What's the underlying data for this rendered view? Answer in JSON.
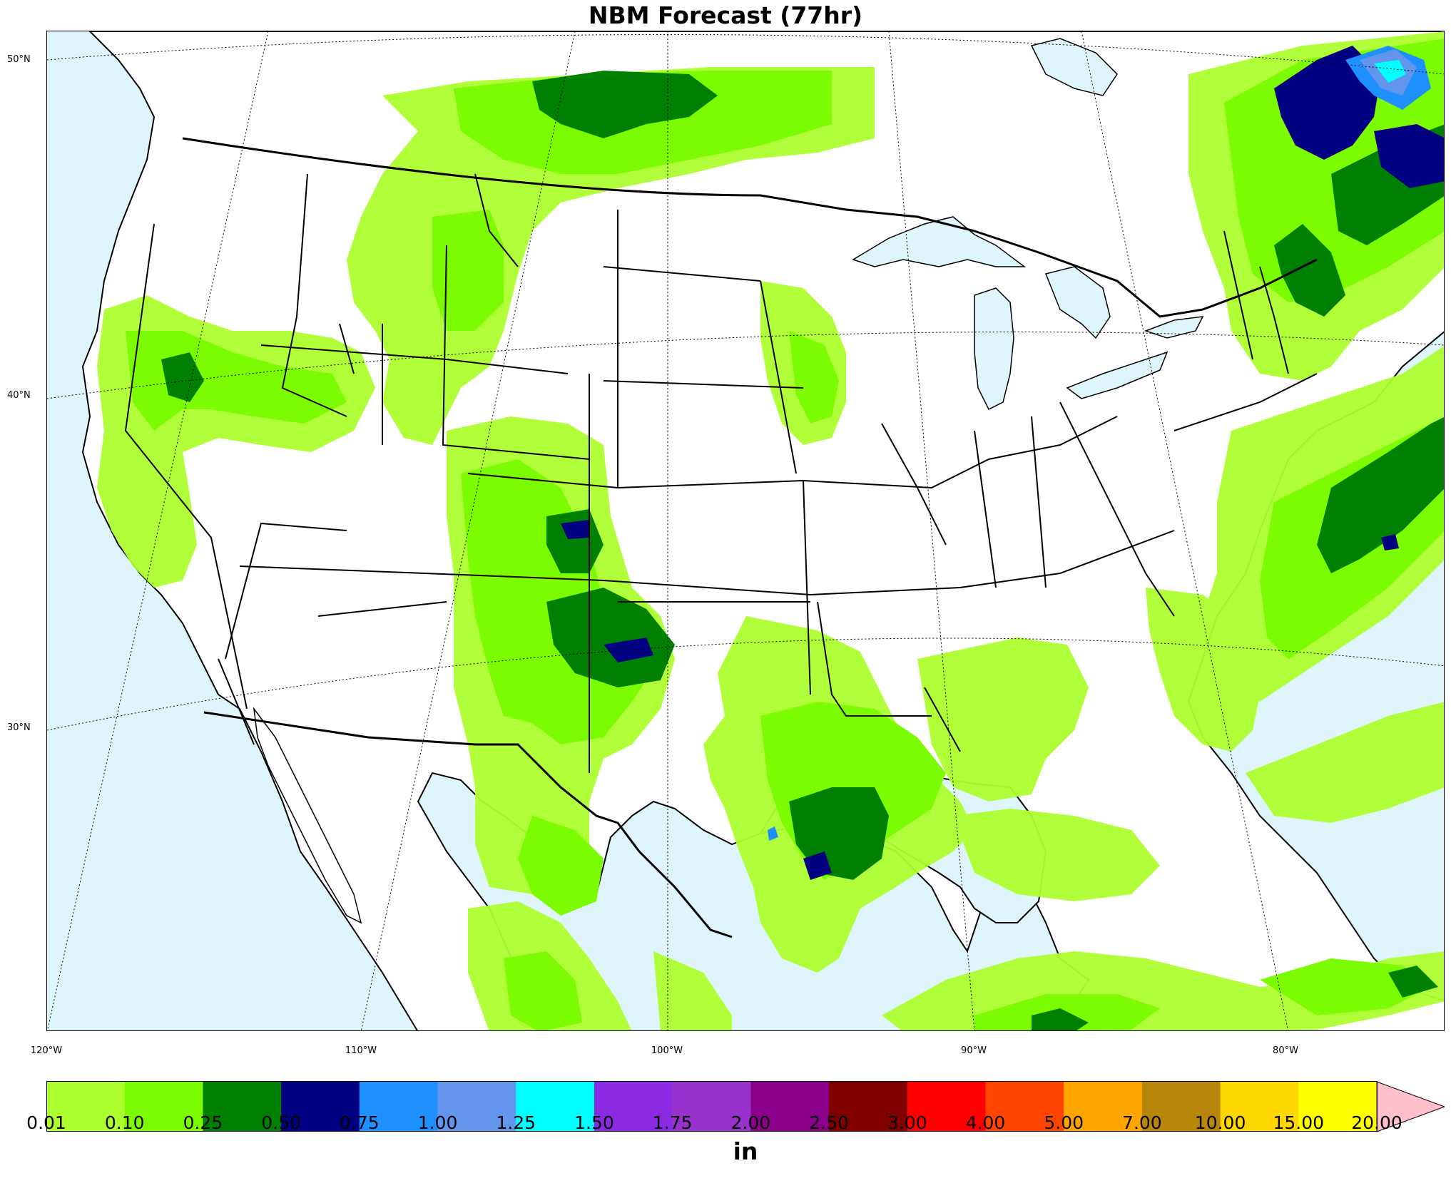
{
  "title": "NBM Forecast (77hr)",
  "map": {
    "type": "precipitation-contour-map",
    "region": "CONUS",
    "colors": {
      "ocean": "#dff5fc",
      "land": "#ffffff",
      "lines": "#000000"
    },
    "lat_labels": [
      "50°N",
      "40°N",
      "30°N"
    ],
    "lon_labels": [
      "120°W",
      "110°W",
      "100°W",
      "90°W",
      "80°W"
    ]
  },
  "colorbar": {
    "units": "in",
    "extend": "max",
    "extend_color": "#ffc0cb",
    "levels": [
      "0.01",
      "0.10",
      "0.25",
      "0.50",
      "0.75",
      "1.00",
      "1.25",
      "1.50",
      "1.75",
      "2.00",
      "2.50",
      "3.00",
      "4.00",
      "5.00",
      "7.00",
      "10.00",
      "15.00",
      "20.00"
    ],
    "colors": [
      "#adff2f",
      "#7cfc00",
      "#008000",
      "#000080",
      "#1e90ff",
      "#6495ed",
      "#00ffff",
      "#8a2be2",
      "#9932cc",
      "#8b008b",
      "#800000",
      "#ff0000",
      "#ff4500",
      "#ffa500",
      "#b8860b",
      "#ffd700",
      "#ffff00"
    ]
  }
}
